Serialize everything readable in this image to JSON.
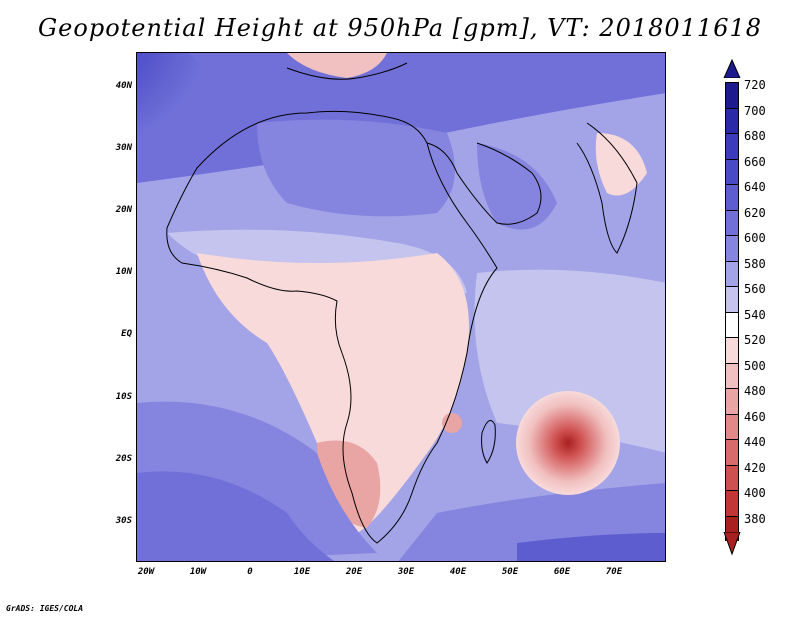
{
  "title": "Geopotential Height at 950hPa [gpm], VT: 2018011618",
  "credit": "GrADS: IGES/COLA",
  "map": {
    "lat_ticks": [
      "40N",
      "30N",
      "20N",
      "10N",
      "EQ",
      "10S",
      "20S",
      "30S"
    ],
    "lat_values": [
      40,
      30,
      20,
      10,
      0,
      -10,
      -20,
      -30
    ],
    "lon_ticks": [
      "20W",
      "10W",
      "0",
      "10E",
      "20E",
      "30E",
      "40E",
      "50E",
      "60E",
      "70E"
    ],
    "lon_values": [
      -20,
      -10,
      0,
      10,
      20,
      30,
      40,
      50,
      60,
      70
    ],
    "extent": {
      "lon_min": -22,
      "lon_max": 80,
      "lat_min": -37,
      "lat_max": 45
    }
  },
  "colorbar": {
    "levels": [
      "720",
      "700",
      "680",
      "660",
      "640",
      "620",
      "600",
      "580",
      "560",
      "540",
      "520",
      "500",
      "480",
      "460",
      "440",
      "420",
      "400",
      "380"
    ],
    "colors": [
      "#1c1a8c",
      "#2a2aa8",
      "#3b3bbb",
      "#4a4ac6",
      "#5d5dd0",
      "#7070d8",
      "#8585df",
      "#a3a3e8",
      "#c4c4ee",
      "#ffffff",
      "#f8dada",
      "#f1c0c0",
      "#e9a4a4",
      "#e18888",
      "#d86c6c",
      "#cf5050",
      "#c23636",
      "#a82020"
    ]
  }
}
